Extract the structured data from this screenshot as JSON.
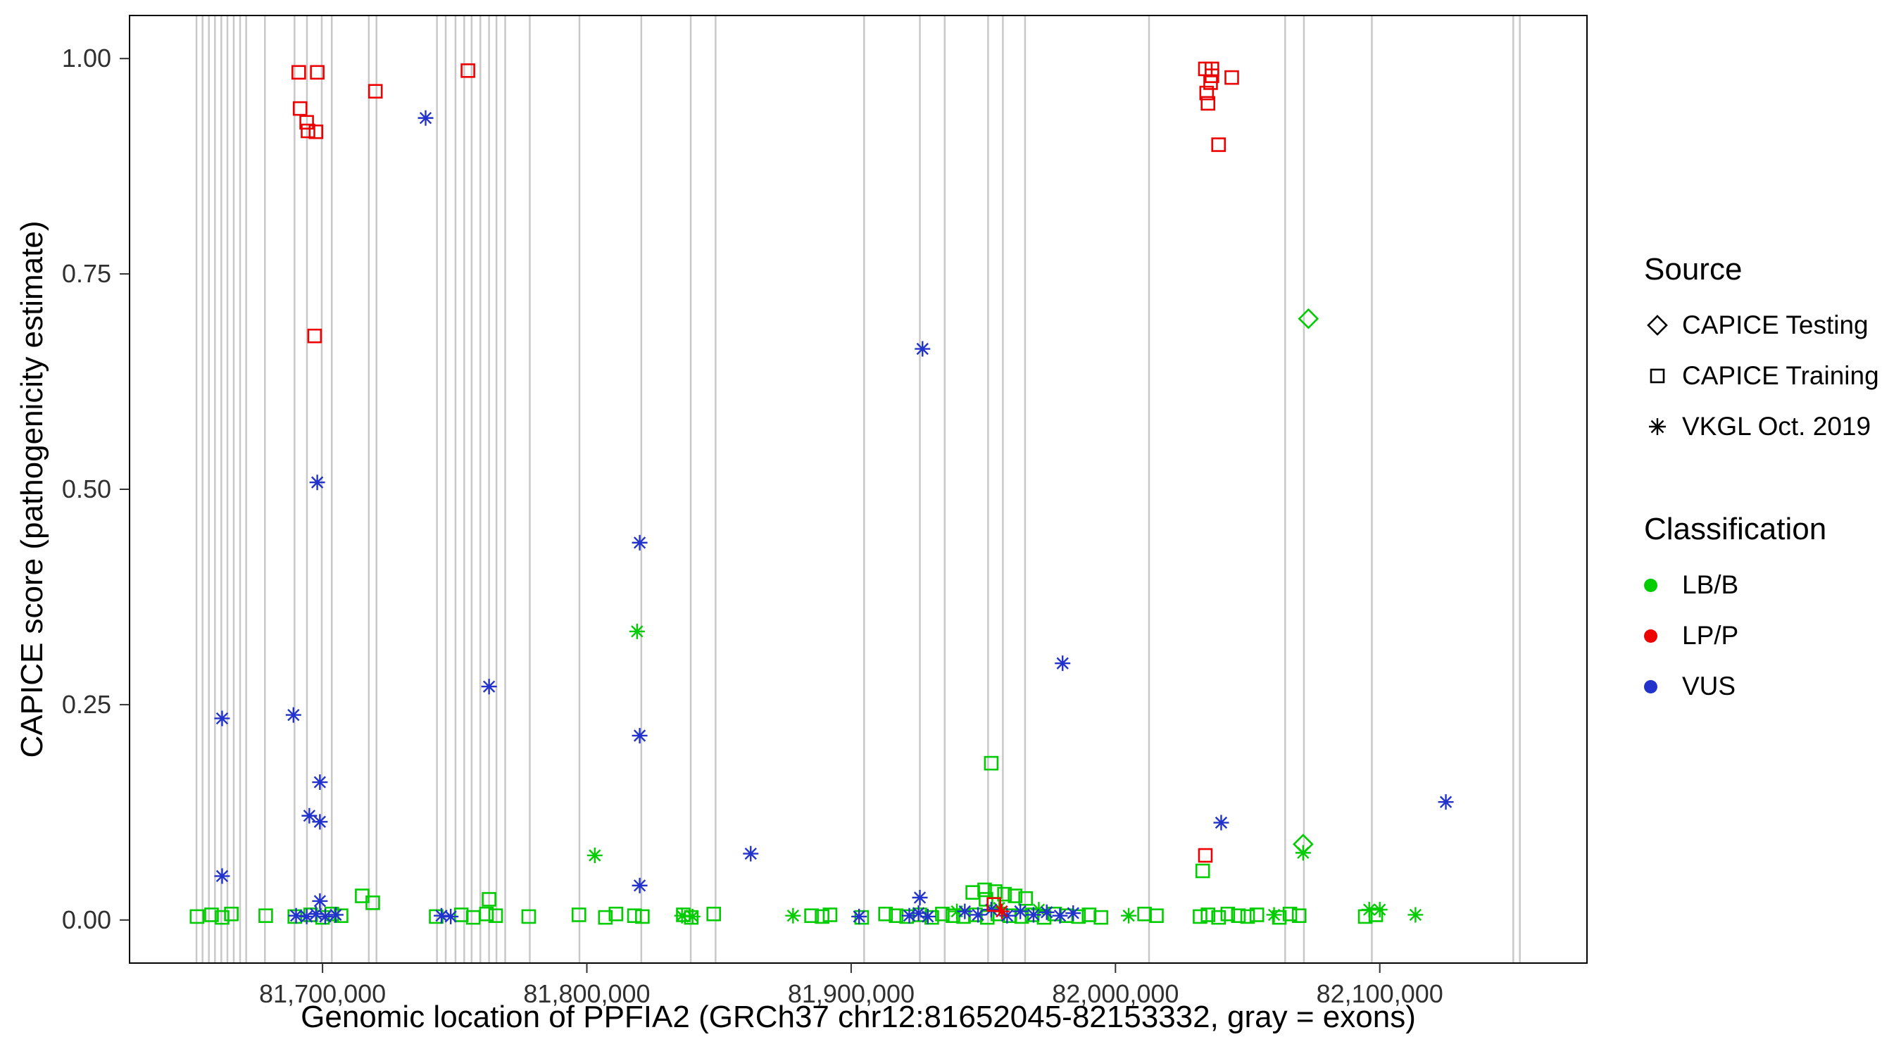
{
  "legend": {
    "source": {
      "title": "Source",
      "items": [
        {
          "label": "CAPICE Testing",
          "shape": "diamond"
        },
        {
          "label": "CAPICE Training",
          "shape": "square"
        },
        {
          "label": "VKGL Oct. 2019",
          "shape": "asterisk"
        }
      ]
    },
    "classification": {
      "title": "Classification",
      "items": [
        {
          "label": "LB/B",
          "color": "#00cc00"
        },
        {
          "label": "LP/P",
          "color": "#ee0000"
        },
        {
          "label": "VUS",
          "color": "#2233cc"
        }
      ]
    }
  },
  "chart_data": {
    "type": "scatter",
    "title": "",
    "xlabel": "Genomic location of PPFIA2 (GRCh37 chr12:81652045-82153332, gray = exons)",
    "ylabel": "CAPICE score (pathogenicity estimate)",
    "xlim": [
      81652045,
      82153332
    ],
    "ylim": [
      0,
      1
    ],
    "expansion": 0.05,
    "grid": false,
    "legend_position": "right",
    "x_ticks": [
      {
        "value": 81700000,
        "label": "81,700,000"
      },
      {
        "value": 81800000,
        "label": "81,800,000"
      },
      {
        "value": 81900000,
        "label": "81,900,000"
      },
      {
        "value": 82000000,
        "label": "82,000,000"
      },
      {
        "value": 82100000,
        "label": "82,100,000"
      }
    ],
    "y_ticks": [
      {
        "value": 0.0,
        "label": "0.00"
      },
      {
        "value": 0.25,
        "label": "0.25"
      },
      {
        "value": 0.5,
        "label": "0.50"
      },
      {
        "value": 0.75,
        "label": "0.75"
      },
      {
        "value": 1.0,
        "label": "1.00"
      }
    ],
    "colors": {
      "LB/B": "#00cc00",
      "LP/P": "#ee0000",
      "VUS": "#2233cc",
      "exon": "#c8c8c8",
      "axis": "#303030"
    },
    "shape_map": {
      "di": "CAPICE Testing",
      "sq": "CAPICE Training",
      "as": "VKGL Oct. 2019"
    },
    "class_map": {
      "B": "LB/B",
      "P": "LP/P",
      "V": "VUS"
    },
    "exons": [
      81652300,
      81654600,
      81657000,
      81659300,
      81661700,
      81664000,
      81666400,
      81668800,
      81671100,
      81678200,
      81689400,
      81694100,
      81699700,
      81703500,
      81717500,
      81720400,
      81743300,
      81746600,
      81750300,
      81753600,
      81756400,
      81759700,
      81763000,
      81765800,
      81769100,
      81778400,
      81797200,
      81820600,
      81839300,
      81848700,
      81904900,
      81926000,
      81935400,
      81951800,
      81957400,
      81965800,
      82012700,
      82064200,
      82071300,
      82097000,
      82150500,
      82153000
    ],
    "points": [
      [
        81652500,
        0.004,
        "sq",
        "B"
      ],
      [
        81658000,
        0.006,
        "sq",
        "B"
      ],
      [
        81662000,
        0.003,
        "sq",
        "B"
      ],
      [
        81665500,
        0.007,
        "sq",
        "B"
      ],
      [
        81678500,
        0.005,
        "sq",
        "B"
      ],
      [
        81689500,
        0.004,
        "sq",
        "B"
      ],
      [
        81695500,
        0.006,
        "sq",
        "B"
      ],
      [
        81700000,
        0.003,
        "sq",
        "B"
      ],
      [
        81703500,
        0.007,
        "sq",
        "B"
      ],
      [
        81707000,
        0.005,
        "sq",
        "B"
      ],
      [
        81743000,
        0.004,
        "sq",
        "B"
      ],
      [
        81752500,
        0.006,
        "sq",
        "B"
      ],
      [
        81757000,
        0.003,
        "sq",
        "B"
      ],
      [
        81762000,
        0.007,
        "sq",
        "B"
      ],
      [
        81765500,
        0.005,
        "sq",
        "B"
      ],
      [
        81778000,
        0.004,
        "sq",
        "B"
      ],
      [
        81797000,
        0.006,
        "sq",
        "B"
      ],
      [
        81807000,
        0.003,
        "sq",
        "B"
      ],
      [
        81811000,
        0.007,
        "sq",
        "B"
      ],
      [
        81818000,
        0.005,
        "sq",
        "B"
      ],
      [
        81821000,
        0.004,
        "sq",
        "B"
      ],
      [
        81836500,
        0.006,
        "sq",
        "B"
      ],
      [
        81839500,
        0.003,
        "sq",
        "B"
      ],
      [
        81848000,
        0.007,
        "sq",
        "B"
      ],
      [
        81885000,
        0.005,
        "sq",
        "B"
      ],
      [
        81889000,
        0.004,
        "sq",
        "B"
      ],
      [
        81892000,
        0.006,
        "sq",
        "B"
      ],
      [
        81904000,
        0.003,
        "sq",
        "B"
      ],
      [
        81913000,
        0.007,
        "sq",
        "B"
      ],
      [
        81917000,
        0.005,
        "sq",
        "B"
      ],
      [
        81921000,
        0.004,
        "sq",
        "B"
      ],
      [
        81926000,
        0.006,
        "sq",
        "B"
      ],
      [
        81930500,
        0.003,
        "sq",
        "B"
      ],
      [
        81934500,
        0.007,
        "sq",
        "B"
      ],
      [
        81938500,
        0.005,
        "sq",
        "B"
      ],
      [
        81942500,
        0.004,
        "sq",
        "B"
      ],
      [
        81947000,
        0.006,
        "sq",
        "B"
      ],
      [
        81951500,
        0.003,
        "sq",
        "B"
      ],
      [
        81955500,
        0.007,
        "sq",
        "B"
      ],
      [
        81960000,
        0.005,
        "sq",
        "B"
      ],
      [
        81964500,
        0.004,
        "sq",
        "B"
      ],
      [
        81968500,
        0.006,
        "sq",
        "B"
      ],
      [
        81973000,
        0.003,
        "sq",
        "B"
      ],
      [
        81977000,
        0.007,
        "sq",
        "B"
      ],
      [
        81981500,
        0.005,
        "sq",
        "B"
      ],
      [
        81986000,
        0.004,
        "sq",
        "B"
      ],
      [
        81990000,
        0.006,
        "sq",
        "B"
      ],
      [
        81994500,
        0.003,
        "sq",
        "B"
      ],
      [
        82011000,
        0.007,
        "sq",
        "B"
      ],
      [
        82015500,
        0.005,
        "sq",
        "B"
      ],
      [
        82032000,
        0.004,
        "sq",
        "B"
      ],
      [
        82035000,
        0.006,
        "sq",
        "B"
      ],
      [
        82039000,
        0.003,
        "sq",
        "B"
      ],
      [
        82042500,
        0.007,
        "sq",
        "B"
      ],
      [
        82046500,
        0.005,
        "sq",
        "B"
      ],
      [
        82050000,
        0.004,
        "sq",
        "B"
      ],
      [
        82053500,
        0.006,
        "sq",
        "B"
      ],
      [
        82062000,
        0.003,
        "sq",
        "B"
      ],
      [
        82066000,
        0.007,
        "sq",
        "B"
      ],
      [
        82069500,
        0.005,
        "sq",
        "B"
      ],
      [
        82094500,
        0.004,
        "sq",
        "B"
      ],
      [
        82098500,
        0.006,
        "sq",
        "B"
      ],
      [
        81836000,
        0.005,
        "as",
        "B"
      ],
      [
        81840000,
        0.004,
        "as",
        "B"
      ],
      [
        81878000,
        0.005,
        "as",
        "B"
      ],
      [
        81940000,
        0.01,
        "as",
        "B"
      ],
      [
        81956000,
        0.014,
        "as",
        "B"
      ],
      [
        81971000,
        0.012,
        "as",
        "B"
      ],
      [
        82005000,
        0.005,
        "as",
        "B"
      ],
      [
        82060000,
        0.006,
        "as",
        "B"
      ],
      [
        82096000,
        0.012,
        "as",
        "B"
      ],
      [
        82100000,
        0.012,
        "as",
        "B"
      ],
      [
        82113500,
        0.006,
        "as",
        "B"
      ],
      [
        81953000,
        0.182,
        "sq",
        "B"
      ],
      [
        82033000,
        0.057,
        "sq",
        "B"
      ],
      [
        81763000,
        0.024,
        "sq",
        "B"
      ],
      [
        81715000,
        0.028,
        "sq",
        "B"
      ],
      [
        81719000,
        0.02,
        "sq",
        "B"
      ],
      [
        81946000,
        0.032,
        "sq",
        "B"
      ],
      [
        81950500,
        0.035,
        "sq",
        "B"
      ],
      [
        81954500,
        0.033,
        "sq",
        "B"
      ],
      [
        81958000,
        0.03,
        "sq",
        "B"
      ],
      [
        81951000,
        0.024,
        "sq",
        "B"
      ],
      [
        81962000,
        0.028,
        "sq",
        "B"
      ],
      [
        81966000,
        0.025,
        "sq",
        "B"
      ],
      [
        81819000,
        0.335,
        "as",
        "B"
      ],
      [
        81803000,
        0.075,
        "as",
        "B"
      ],
      [
        82071000,
        0.078,
        "as",
        "B"
      ],
      [
        82073000,
        0.698,
        "di",
        "B"
      ],
      [
        82071000,
        0.088,
        "di",
        "B"
      ],
      [
        81690000,
        0.005,
        "as",
        "V"
      ],
      [
        81694000,
        0.004,
        "as",
        "V"
      ],
      [
        81697500,
        0.007,
        "as",
        "V"
      ],
      [
        81701000,
        0.004,
        "as",
        "V"
      ],
      [
        81705000,
        0.006,
        "as",
        "V"
      ],
      [
        81745000,
        0.005,
        "as",
        "V"
      ],
      [
        81748500,
        0.004,
        "as",
        "V"
      ],
      [
        81903000,
        0.004,
        "as",
        "V"
      ],
      [
        81922000,
        0.005,
        "as",
        "V"
      ],
      [
        81925500,
        0.008,
        "as",
        "V"
      ],
      [
        81929000,
        0.004,
        "as",
        "V"
      ],
      [
        81943000,
        0.01,
        "as",
        "V"
      ],
      [
        81948000,
        0.006,
        "as",
        "V"
      ],
      [
        81953000,
        0.012,
        "as",
        "V"
      ],
      [
        81959000,
        0.005,
        "as",
        "V"
      ],
      [
        81964000,
        0.01,
        "as",
        "V"
      ],
      [
        81969000,
        0.006,
        "as",
        "V"
      ],
      [
        81974000,
        0.009,
        "as",
        "V"
      ],
      [
        81979000,
        0.005,
        "as",
        "V"
      ],
      [
        81984000,
        0.008,
        "as",
        "V"
      ],
      [
        81739000,
        0.931,
        "as",
        "V"
      ],
      [
        81927000,
        0.663,
        "as",
        "V"
      ],
      [
        81698000,
        0.508,
        "as",
        "V"
      ],
      [
        81820000,
        0.438,
        "as",
        "V"
      ],
      [
        81980000,
        0.298,
        "as",
        "V"
      ],
      [
        81763000,
        0.271,
        "as",
        "V"
      ],
      [
        81662000,
        0.234,
        "as",
        "V"
      ],
      [
        81689000,
        0.238,
        "as",
        "V"
      ],
      [
        81820000,
        0.214,
        "as",
        "V"
      ],
      [
        81699000,
        0.16,
        "as",
        "V"
      ],
      [
        82125000,
        0.137,
        "as",
        "V"
      ],
      [
        82040000,
        0.113,
        "as",
        "V"
      ],
      [
        81695000,
        0.121,
        "as",
        "V"
      ],
      [
        81699000,
        0.114,
        "as",
        "V"
      ],
      [
        81662000,
        0.051,
        "as",
        "V"
      ],
      [
        81862000,
        0.077,
        "as",
        "V"
      ],
      [
        81820000,
        0.04,
        "as",
        "V"
      ],
      [
        81926000,
        0.026,
        "as",
        "V"
      ],
      [
        81699000,
        0.022,
        "as",
        "V"
      ],
      [
        81691000,
        0.984,
        "sq",
        "P"
      ],
      [
        81698000,
        0.984,
        "sq",
        "P"
      ],
      [
        81691500,
        0.942,
        "sq",
        "P"
      ],
      [
        81694000,
        0.926,
        "sq",
        "P"
      ],
      [
        81694500,
        0.916,
        "sq",
        "P"
      ],
      [
        81697500,
        0.915,
        "sq",
        "P"
      ],
      [
        81720000,
        0.962,
        "sq",
        "P"
      ],
      [
        81755000,
        0.986,
        "sq",
        "P"
      ],
      [
        81697000,
        0.678,
        "sq",
        "P"
      ],
      [
        82034000,
        0.988,
        "sq",
        "P"
      ],
      [
        82036500,
        0.988,
        "sq",
        "P"
      ],
      [
        82036500,
        0.98,
        "sq",
        "P"
      ],
      [
        82036000,
        0.972,
        "sq",
        "P"
      ],
      [
        82034500,
        0.96,
        "sq",
        "P"
      ],
      [
        82035000,
        0.948,
        "sq",
        "P"
      ],
      [
        82044000,
        0.978,
        "sq",
        "P"
      ],
      [
        82039000,
        0.9,
        "sq",
        "P"
      ],
      [
        82034000,
        0.075,
        "sq",
        "P"
      ],
      [
        81954000,
        0.018,
        "sq",
        "P"
      ],
      [
        81957000,
        0.01,
        "as",
        "P"
      ]
    ]
  }
}
